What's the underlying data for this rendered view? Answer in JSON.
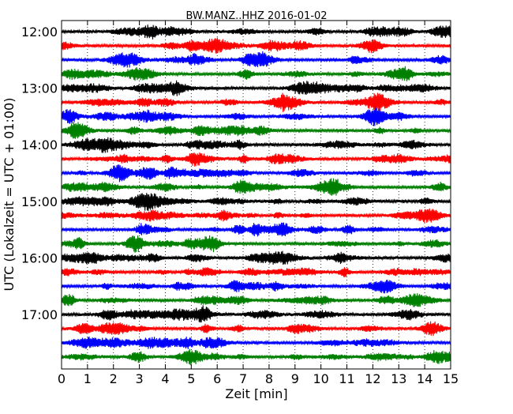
{
  "chart_data": {
    "type": "line",
    "title": "BW.MANZ..HHZ 2016-01-02",
    "xlabel": "Zeit  [min]",
    "ylabel": "UTC (Lokalzeit = UTC + 01:00)",
    "xlim": [
      0,
      15
    ],
    "x_ticks": [
      0,
      1,
      2,
      3,
      4,
      5,
      6,
      7,
      8,
      9,
      10,
      11,
      12,
      13,
      14,
      15
    ],
    "y_tick_labels": [
      "12:00",
      "13:00",
      "14:00",
      "15:00",
      "16:00",
      "17:00"
    ],
    "y_tick_every_n_traces": 4,
    "trace_start_time": "12:00",
    "trace_interval_minutes": 15,
    "trace_count": 24,
    "trace_colors": [
      "#000000",
      "#ff0000",
      "#0000ff",
      "#008000"
    ],
    "grid": "vertical dotted at each minute"
  }
}
